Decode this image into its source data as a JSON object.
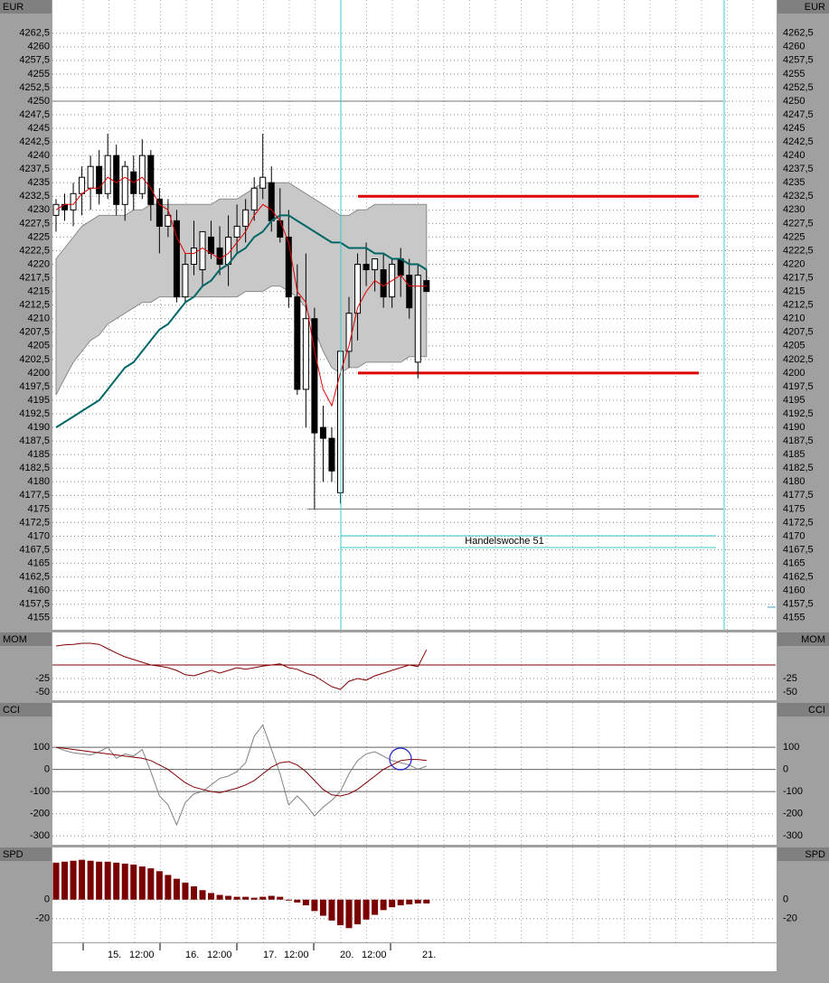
{
  "chart_data": [
    {
      "type": "candlestick",
      "label": "EUR",
      "ylim": [
        4152.8,
        4268.6
      ],
      "yticks": [
        4155,
        {
          "value": 4157.5,
          "label": "4157,5"
        },
        4160,
        {
          "value": 4162.5,
          "label": "4162,5"
        },
        4165,
        {
          "value": 4167.5,
          "label": "4167,5"
        },
        4170,
        {
          "value": 4172.5,
          "label": "4172,5"
        },
        4175,
        {
          "value": 4177.5,
          "label": "4177,5"
        },
        4180,
        {
          "value": 4182.5,
          "label": "4182,5"
        },
        4185,
        {
          "value": 4187.5,
          "label": "4187,5"
        },
        4190,
        {
          "value": 4192.5,
          "label": "4192,5"
        },
        4195,
        {
          "value": 4197.5,
          "label": "4197,5"
        },
        4200,
        {
          "value": 4202.5,
          "label": "4202,5"
        },
        4205,
        {
          "value": 4207.5,
          "label": "4207,5"
        },
        4210,
        {
          "value": 4212.5,
          "label": "4212,5"
        },
        4215,
        {
          "value": 4217.5,
          "label": "4217,5"
        },
        4220,
        {
          "value": 4222.5,
          "label": "4222,5"
        },
        4225,
        {
          "value": 4227.5,
          "label": "4227,5"
        },
        4230,
        {
          "value": 4232.5,
          "label": "4232,5"
        },
        4235,
        {
          "value": 4237.5,
          "label": "4237,5"
        },
        4240,
        {
          "value": 4242.5,
          "label": "4242,5"
        },
        4245,
        {
          "value": 4247.5,
          "label": "4247,5"
        },
        4250,
        {
          "value": 4252.5,
          "label": "4252,5"
        },
        4255,
        {
          "value": 4257.5,
          "label": "4257,5"
        },
        4260,
        {
          "value": 4262.5,
          "label": "4262,5"
        }
      ],
      "open": [
        4229,
        4231,
        4230,
        4233,
        4234,
        4238,
        4233,
        4240,
        4231,
        4237,
        4233,
        4240,
        4232,
        4227,
        4228,
        4214,
        4220,
        4219,
        4225,
        4223,
        4220,
        4225,
        4227,
        4230,
        4234,
        4235,
        4228,
        4225,
        4214,
        4197,
        4210,
        4190,
        4188,
        4178,
        4204,
        4211,
        4220,
        4219,
        4219,
        4214,
        4221,
        4218,
        4202,
        4217
      ],
      "high": [
        4232,
        4233,
        4235,
        4238,
        4240,
        4241,
        4244,
        4242,
        4239,
        4240,
        4243,
        4241,
        4234,
        4232,
        4230,
        4222,
        4228,
        4226,
        4228,
        4227,
        4229,
        4231,
        4232,
        4236,
        4244,
        4238,
        4234,
        4230,
        4220,
        4222,
        4212,
        4194,
        4190,
        4204,
        4214,
        4222,
        4224,
        4221,
        4222,
        4221,
        4223,
        4221,
        4220,
        4219
      ],
      "low": [
        4226,
        4228,
        4227,
        4229,
        4230,
        4231,
        4232,
        4229,
        4228,
        4230,
        4232,
        4228,
        4222,
        4225,
        4213,
        4213,
        4218,
        4216,
        4221,
        4218,
        4216,
        4222,
        4224,
        4228,
        4232,
        4226,
        4224,
        4212,
        4196,
        4190,
        4175,
        4180,
        4180,
        4176,
        4201,
        4206,
        4216,
        4215,
        4212,
        4212,
        4214,
        4210,
        4199,
        4215
      ],
      "close": [
        4231,
        4230,
        4233,
        4236,
        4238,
        4233,
        4240,
        4231,
        4238,
        4233,
        4240,
        4231,
        4227,
        4229,
        4214,
        4220,
        4223,
        4226,
        4222,
        4220,
        4225,
        4227,
        4230,
        4234,
        4236,
        4228,
        4225,
        4214,
        4197,
        4210,
        4189,
        4188,
        4182,
        4204,
        4211,
        4220,
        4219,
        4221,
        4214,
        4220,
        4218,
        4212,
        4218,
        4215
      ],
      "band": {
        "color": "#c8c8c8",
        "upper": [
          4221,
          4223,
          4225,
          4227,
          4228,
          4229,
          4229,
          4229,
          4229,
          4230,
          4230,
          4231,
          4231,
          4231,
          4231,
          4231,
          4231,
          4231,
          4231,
          4232,
          4232,
          4232,
          4233,
          4234,
          4235,
          4235,
          4235,
          4235,
          4234,
          4233,
          4232,
          4231,
          4230,
          4229,
          4229,
          4230,
          4230,
          4231,
          4231,
          4231,
          4231,
          4231,
          4231,
          4231
        ],
        "lower": [
          4196,
          4199,
          4202,
          4204,
          4206,
          4207,
          4209,
          4210,
          4211,
          4212,
          4213,
          4213,
          4214,
          4214,
          4214,
          4214,
          4214,
          4214,
          4214,
          4214,
          4214,
          4214,
          4215,
          4215,
          4215,
          4216,
          4216,
          4215,
          4214,
          4212,
          4208,
          4204,
          4201,
          4200,
          4201,
          4201,
          4202,
          4202,
          4202,
          4202,
          4202,
          4203,
          4203,
          4203
        ]
      },
      "series": [
        {
          "color": "#006666",
          "values": [
            4190,
            4191,
            4192,
            4193,
            4194,
            4195,
            4197,
            4199,
            4201,
            4202,
            4204,
            4206,
            4208,
            4209,
            4211,
            4213,
            4214,
            4216,
            4217,
            4219,
            4220,
            4222,
            4223,
            4225,
            4226,
            4228,
            4229,
            4229,
            4228,
            4227,
            4226,
            4225,
            4224,
            4224,
            4223,
            4223,
            4223,
            4222,
            4222,
            4221,
            4221,
            4220,
            4220,
            4219
          ]
        },
        {
          "color": "#e00000",
          "values": [
            4230,
            4231,
            4231,
            4233,
            4234,
            4234,
            4236,
            4235,
            4236,
            4235,
            4236,
            4234,
            4231,
            4230,
            4225,
            4222,
            4222,
            4223,
            4222,
            4221,
            4222,
            4224,
            4226,
            4229,
            4231,
            4230,
            4228,
            4224,
            4215,
            4213,
            4204,
            4197,
            4194,
            4200,
            4205,
            4212,
            4215,
            4217,
            4216,
            4217,
            4218,
            4216,
            4216,
            4216
          ]
        }
      ],
      "levels": [
        {
          "value": 4232.5,
          "color": "#dd0000"
        },
        {
          "value": 4200,
          "color": "#dd0000"
        },
        {
          "value": 4250,
          "color": "#707070"
        },
        {
          "value": 4175,
          "color": "#707070"
        }
      ],
      "annotation": "Handelswoche 51"
    },
    {
      "type": "line",
      "label": "MOM",
      "ylim": [
        -65,
        60
      ],
      "yticks": [
        -50,
        -25
      ],
      "series": [
        {
          "color": "#800000",
          "values": [
            35,
            37,
            38,
            40,
            40,
            38,
            30,
            22,
            15,
            10,
            5,
            0,
            -2,
            -5,
            -10,
            -18,
            -20,
            -15,
            -10,
            -15,
            -10,
            -5,
            -8,
            -5,
            -2,
            0,
            2,
            -5,
            -8,
            -15,
            -20,
            -30,
            -40,
            -45,
            -30,
            -25,
            -28,
            -20,
            -15,
            -10,
            -5,
            0,
            -3,
            28
          ]
        }
      ]
    },
    {
      "type": "line",
      "label": "CCI",
      "ylim": [
        -340,
        300
      ],
      "yticks": [
        -300,
        -200,
        -100,
        0,
        100
      ],
      "levels": [
        100,
        0,
        -100
      ],
      "series": [
        {
          "color": "#808080",
          "values": [
            100,
            85,
            75,
            70,
            65,
            80,
            100,
            50,
            70,
            60,
            90,
            -10,
            -120,
            -160,
            -250,
            -150,
            -110,
            -100,
            -70,
            -40,
            -30,
            -10,
            30,
            150,
            200,
            90,
            -20,
            -160,
            -120,
            -160,
            -210,
            -170,
            -140,
            -100,
            -20,
            40,
            70,
            80,
            60,
            40,
            30,
            20,
            0,
            15
          ]
        },
        {
          "color": "#800000",
          "values": [
            100,
            95,
            90,
            85,
            80,
            75,
            70,
            65,
            60,
            55,
            50,
            40,
            20,
            0,
            -30,
            -60,
            -80,
            -90,
            -100,
            -105,
            -95,
            -85,
            -70,
            -50,
            -20,
            10,
            30,
            35,
            20,
            -10,
            -50,
            -90,
            -115,
            -120,
            -110,
            -90,
            -60,
            -30,
            0,
            20,
            40,
            45,
            45,
            40
          ]
        }
      ]
    },
    {
      "type": "bar",
      "label": "SPD",
      "ylim": [
        -45,
        55
      ],
      "yticks": [
        -20,
        0
      ],
      "color": "#7a0000",
      "values": [
        39,
        40,
        41,
        42,
        41,
        40,
        40,
        39,
        38,
        37,
        35,
        33,
        30,
        26,
        22,
        18,
        14,
        10,
        7,
        5,
        4,
        3,
        3,
        2,
        3,
        4,
        3,
        0,
        -3,
        -6,
        -12,
        -17,
        -22,
        -27,
        -30,
        -26,
        -21,
        -16,
        -11,
        -8,
        -6,
        -5,
        -4,
        -4
      ],
      "x_tick_labels": [
        "15.",
        "12:00",
        "16.",
        "12:00",
        "17.",
        "12:00",
        "20.",
        "12:00",
        "21."
      ]
    }
  ]
}
